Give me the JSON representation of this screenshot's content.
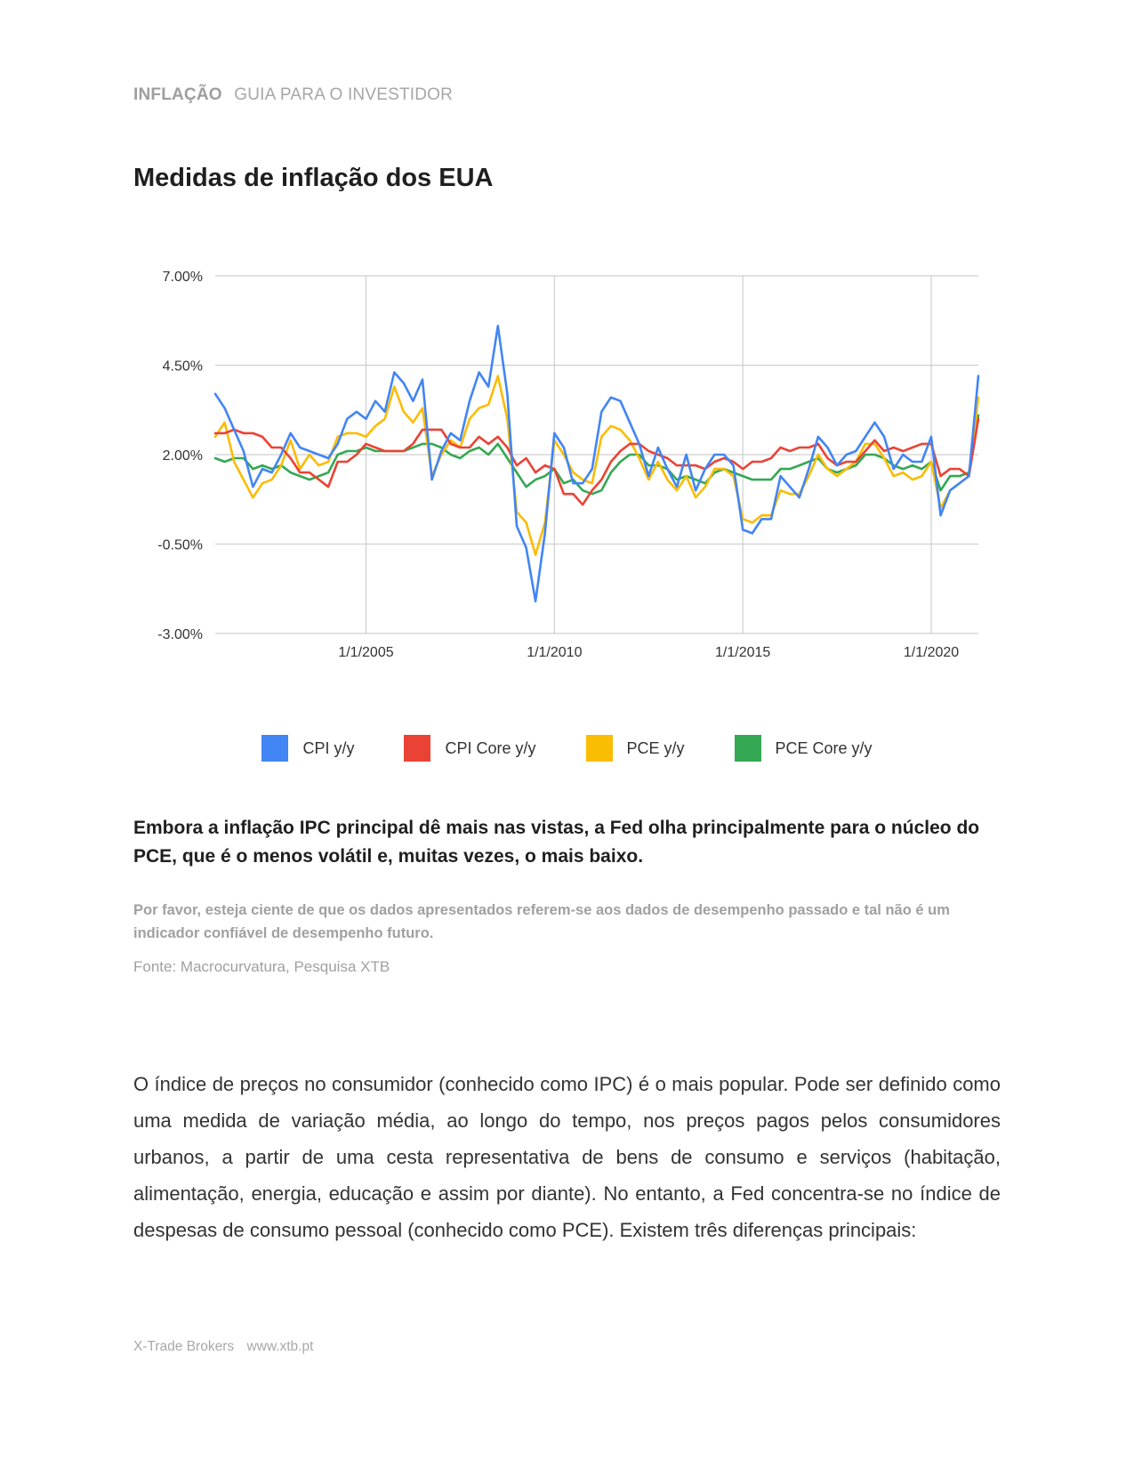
{
  "header": {
    "section": "INFLAÇÃO",
    "subtitle": "GUIA PARA O INVESTIDOR"
  },
  "title": "Medidas de inflação dos EUA",
  "chart_data": {
    "type": "line",
    "title": "",
    "xlabel": "",
    "ylabel": "",
    "ylim": [
      -3.0,
      7.0
    ],
    "y_ticks": [
      "7.00%",
      "4.50%",
      "2.00%",
      "-0.50%",
      "-3.00%"
    ],
    "x_ticks": [
      "1/1/2005",
      "1/1/2010",
      "1/1/2015",
      "1/1/2020"
    ],
    "x_range": [
      "2001-01",
      "2021-04"
    ],
    "grid": true,
    "legend_position": "bottom",
    "x": [
      "2001-01",
      "2001-04",
      "2001-07",
      "2001-10",
      "2002-01",
      "2002-04",
      "2002-07",
      "2002-10",
      "2003-01",
      "2003-04",
      "2003-07",
      "2003-10",
      "2004-01",
      "2004-04",
      "2004-07",
      "2004-10",
      "2005-01",
      "2005-04",
      "2005-07",
      "2005-10",
      "2006-01",
      "2006-04",
      "2006-07",
      "2006-10",
      "2007-01",
      "2007-04",
      "2007-07",
      "2007-10",
      "2008-01",
      "2008-04",
      "2008-07",
      "2008-10",
      "2009-01",
      "2009-04",
      "2009-07",
      "2009-10",
      "2010-01",
      "2010-04",
      "2010-07",
      "2010-10",
      "2011-01",
      "2011-04",
      "2011-07",
      "2011-10",
      "2012-01",
      "2012-04",
      "2012-07",
      "2012-10",
      "2013-01",
      "2013-04",
      "2013-07",
      "2013-10",
      "2014-01",
      "2014-04",
      "2014-07",
      "2014-10",
      "2015-01",
      "2015-04",
      "2015-07",
      "2015-10",
      "2016-01",
      "2016-04",
      "2016-07",
      "2016-10",
      "2017-01",
      "2017-04",
      "2017-07",
      "2017-10",
      "2018-01",
      "2018-04",
      "2018-07",
      "2018-10",
      "2019-01",
      "2019-04",
      "2019-07",
      "2019-10",
      "2020-01",
      "2020-04",
      "2020-07",
      "2020-10",
      "2021-01",
      "2021-04"
    ],
    "series": [
      {
        "name": "CPI y/y",
        "color": "#4285f4",
        "values": [
          3.7,
          3.3,
          2.7,
          2.1,
          1.1,
          1.6,
          1.5,
          2.0,
          2.6,
          2.2,
          2.1,
          2.0,
          1.9,
          2.3,
          3.0,
          3.2,
          3.0,
          3.5,
          3.2,
          4.3,
          4.0,
          3.5,
          4.1,
          1.3,
          2.1,
          2.6,
          2.4,
          3.5,
          4.3,
          3.9,
          5.6,
          3.7,
          0.0,
          -0.6,
          -2.1,
          -0.2,
          2.6,
          2.2,
          1.2,
          1.2,
          1.6,
          3.2,
          3.6,
          3.5,
          2.9,
          2.3,
          1.4,
          2.2,
          1.6,
          1.1,
          2.0,
          1.0,
          1.6,
          2.0,
          2.0,
          1.7,
          -0.1,
          -0.2,
          0.2,
          0.2,
          1.4,
          1.1,
          0.8,
          1.6,
          2.5,
          2.2,
          1.7,
          2.0,
          2.1,
          2.5,
          2.9,
          2.5,
          1.6,
          2.0,
          1.8,
          1.8,
          2.5,
          0.3,
          1.0,
          1.2,
          1.4,
          4.2
        ]
      },
      {
        "name": "CPI Core y/y",
        "color": "#ea4335",
        "values": [
          2.6,
          2.6,
          2.7,
          2.6,
          2.6,
          2.5,
          2.2,
          2.2,
          1.9,
          1.5,
          1.5,
          1.3,
          1.1,
          1.8,
          1.8,
          2.0,
          2.3,
          2.2,
          2.1,
          2.1,
          2.1,
          2.3,
          2.7,
          2.7,
          2.7,
          2.3,
          2.2,
          2.2,
          2.5,
          2.3,
          2.5,
          2.2,
          1.7,
          1.9,
          1.5,
          1.7,
          1.6,
          0.9,
          0.9,
          0.6,
          1.0,
          1.3,
          1.8,
          2.1,
          2.3,
          2.3,
          2.1,
          2.0,
          1.9,
          1.7,
          1.7,
          1.7,
          1.6,
          1.8,
          1.9,
          1.8,
          1.6,
          1.8,
          1.8,
          1.9,
          2.2,
          2.1,
          2.2,
          2.2,
          2.3,
          1.9,
          1.7,
          1.8,
          1.8,
          2.1,
          2.4,
          2.1,
          2.2,
          2.1,
          2.2,
          2.3,
          2.3,
          1.4,
          1.6,
          1.6,
          1.4,
          3.0
        ]
      },
      {
        "name": "PCE y/y",
        "color": "#fbbc04",
        "values": [
          2.5,
          2.9,
          1.8,
          1.3,
          0.8,
          1.2,
          1.3,
          1.7,
          2.4,
          1.6,
          2.0,
          1.7,
          1.8,
          2.5,
          2.6,
          2.6,
          2.5,
          2.8,
          3.0,
          3.9,
          3.2,
          2.9,
          3.3,
          1.4,
          2.0,
          2.4,
          2.2,
          3.0,
          3.3,
          3.4,
          4.2,
          3.0,
          0.4,
          0.1,
          -0.8,
          0.1,
          2.4,
          2.0,
          1.5,
          1.3,
          1.2,
          2.5,
          2.8,
          2.7,
          2.4,
          1.9,
          1.3,
          1.8,
          1.3,
          1.0,
          1.4,
          0.8,
          1.1,
          1.6,
          1.6,
          1.4,
          0.2,
          0.1,
          0.3,
          0.3,
          1.0,
          0.9,
          0.9,
          1.4,
          2.0,
          1.6,
          1.4,
          1.6,
          1.8,
          2.3,
          2.3,
          1.9,
          1.4,
          1.5,
          1.3,
          1.4,
          1.8,
          0.5,
          1.0,
          1.2,
          1.4,
          3.6
        ]
      },
      {
        "name": "PCE Core y/y",
        "color": "#34a853",
        "values": [
          1.9,
          1.8,
          1.9,
          1.9,
          1.6,
          1.7,
          1.6,
          1.7,
          1.5,
          1.4,
          1.3,
          1.4,
          1.5,
          2.0,
          2.1,
          2.1,
          2.2,
          2.1,
          2.1,
          2.1,
          2.1,
          2.2,
          2.3,
          2.3,
          2.2,
          2.0,
          1.9,
          2.1,
          2.2,
          2.0,
          2.3,
          1.9,
          1.5,
          1.1,
          1.3,
          1.4,
          1.6,
          1.2,
          1.3,
          1.0,
          0.9,
          1.0,
          1.5,
          1.8,
          2.0,
          2.0,
          1.7,
          1.7,
          1.6,
          1.3,
          1.4,
          1.3,
          1.2,
          1.5,
          1.6,
          1.5,
          1.4,
          1.3,
          1.3,
          1.3,
          1.6,
          1.6,
          1.7,
          1.8,
          1.9,
          1.6,
          1.5,
          1.6,
          1.7,
          2.0,
          2.0,
          1.9,
          1.7,
          1.6,
          1.7,
          1.6,
          1.8,
          1.0,
          1.4,
          1.4,
          1.5,
          3.1
        ]
      }
    ]
  },
  "legend": [
    "CPI y/y",
    "CPI Core y/y",
    "PCE y/y",
    "PCE Core y/y"
  ],
  "lead": "Embora a inflação IPC principal dê mais nas vistas, a Fed olha principalmente para o núcleo do PCE, que é o menos volátil e, muitas vezes, o mais baixo.",
  "disclaimer": "Por favor, esteja ciente de que os dados apresentados referem-se aos dados de desempenho passado e tal não é um indicador confiável de desempenho futuro.",
  "source": "Fonte: Macrocurvatura, Pesquisa XTB",
  "body": "O índice de preços no consumidor (conhecido como IPC) é o mais popular. Pode ser definido como uma medida de variação média, ao longo do tempo, nos preços pagos pelos consumidores urbanos, a partir de uma cesta representativa de bens de consumo e serviços (habitação, alimentação, energia, educação e assim por diante). No entanto, a Fed concentra-se no índice de despesas de consumo pessoal (conhecido como PCE). Existem três diferenças principais:",
  "footer": {
    "company": "X-Trade Brokers",
    "url": "www.xtb.pt"
  }
}
